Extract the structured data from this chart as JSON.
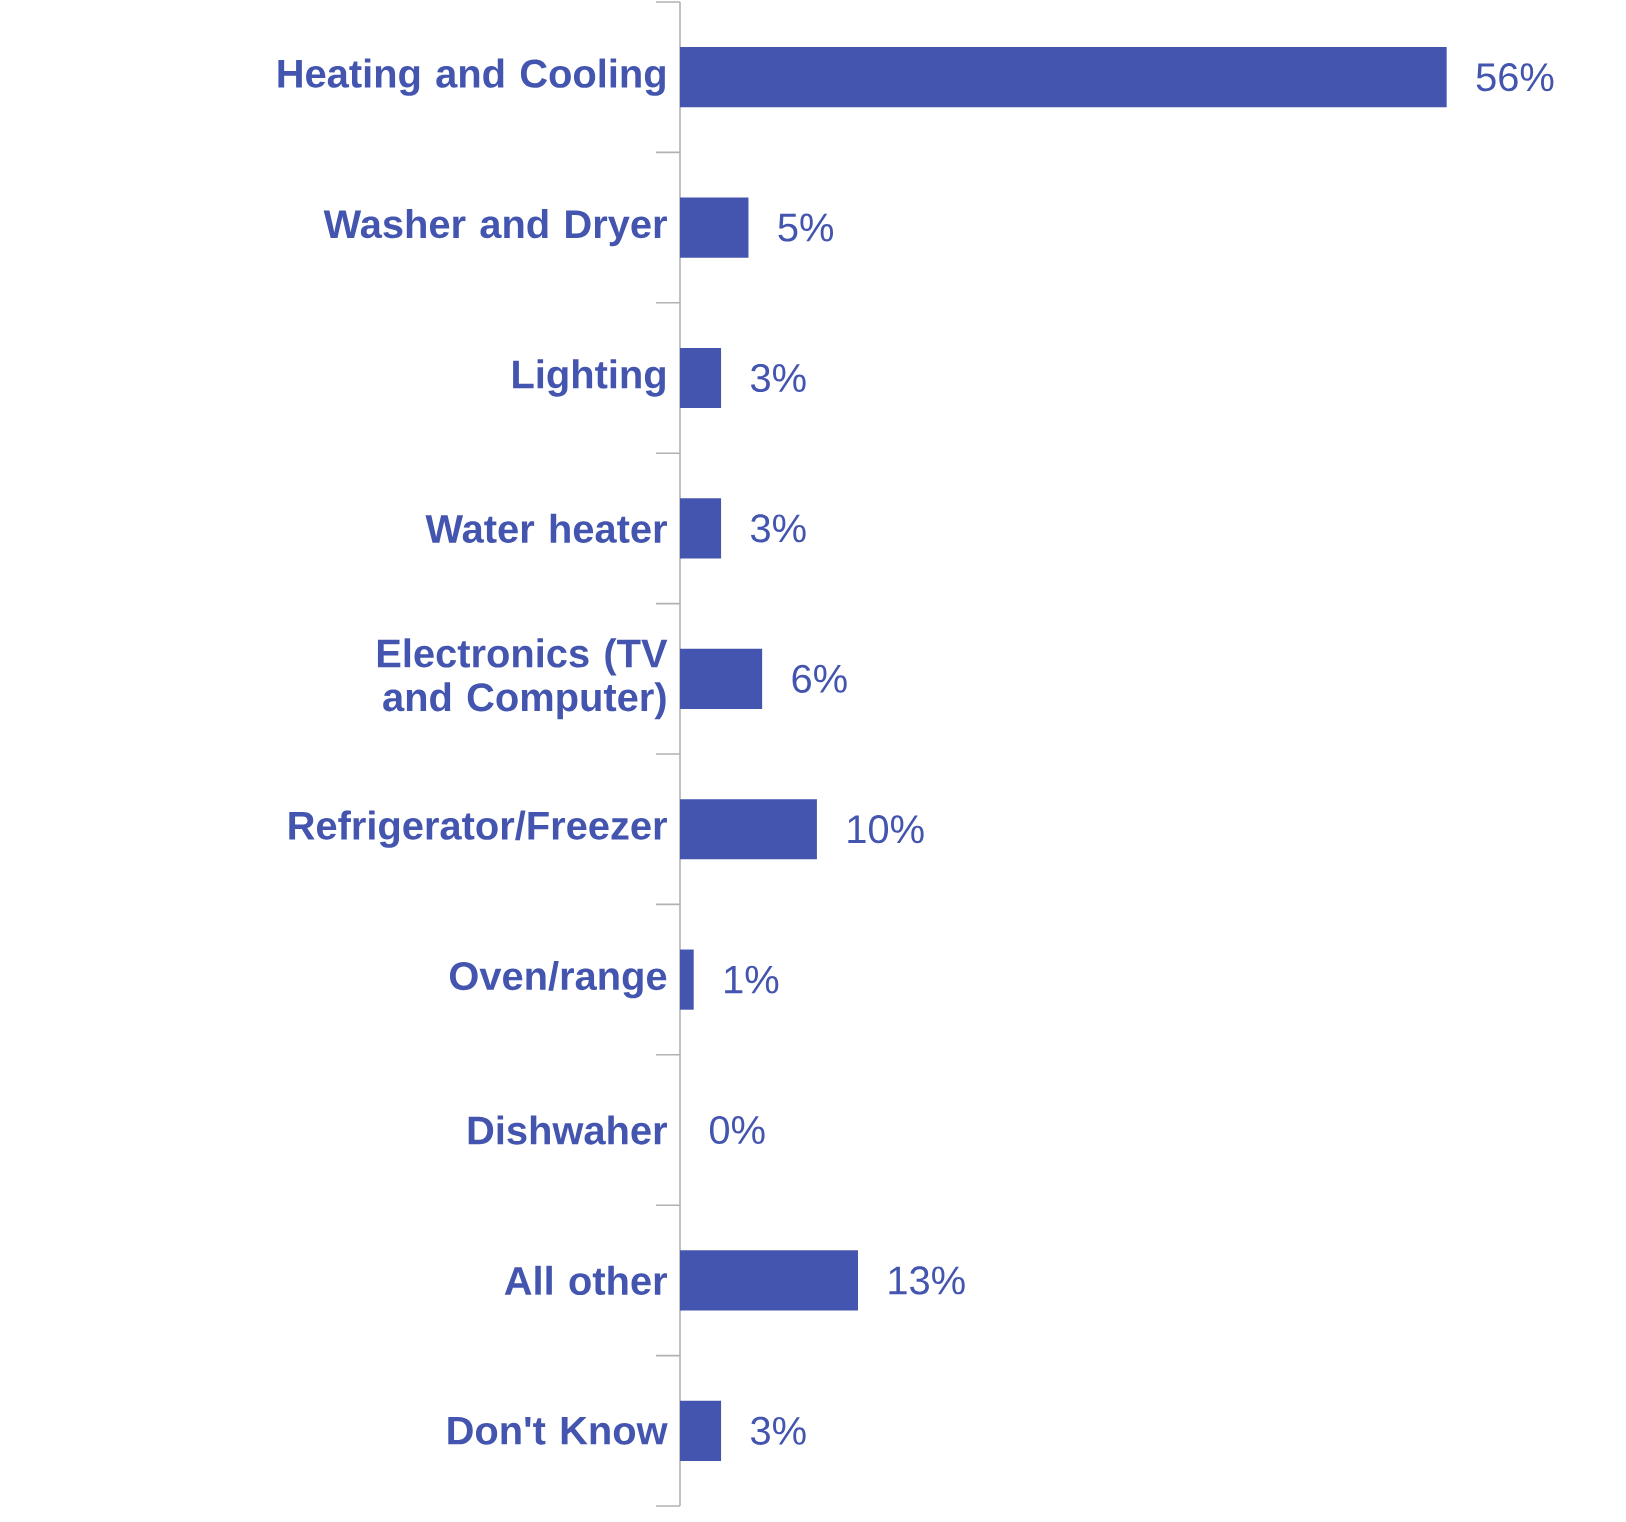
{
  "chart_data": {
    "type": "bar",
    "orientation": "horizontal",
    "color": "#4355ae",
    "categories": [
      "Heating and Cooling",
      "Washer and Dryer",
      "Lighting",
      "Water heater",
      "Electronics (TV and Computer)",
      "Refrigerator/Freezer",
      "Oven/range",
      "Dishwaher",
      "All other",
      "Don't Know"
    ],
    "values": [
      56,
      5,
      3,
      3,
      6,
      10,
      1,
      0,
      13,
      3
    ],
    "value_labels": [
      "56%",
      "5%",
      "3%",
      "3%",
      "6%",
      "10%",
      "1%",
      "0%",
      "13%",
      "3%"
    ]
  }
}
